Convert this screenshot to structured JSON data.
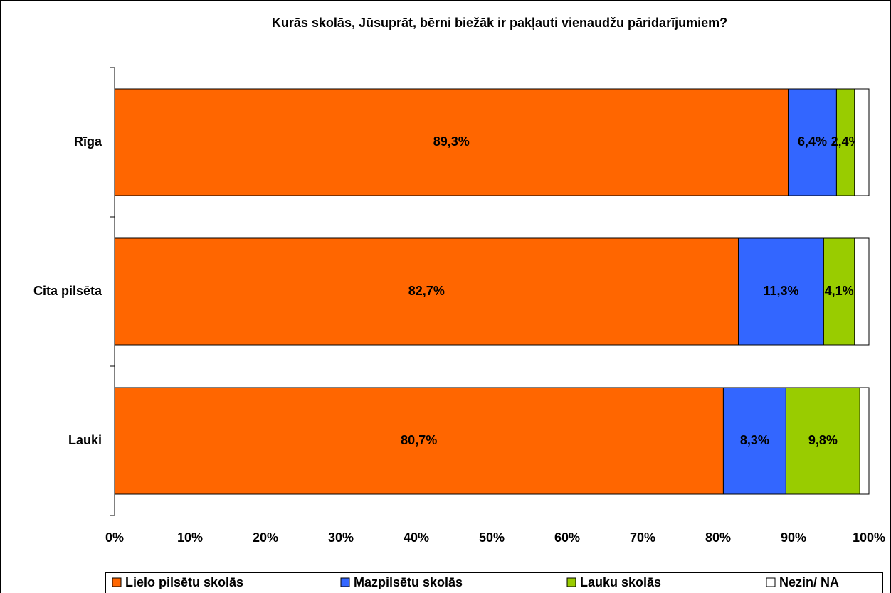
{
  "chart_data": {
    "type": "stacked-barh",
    "title": "Kurās skolās, Jūsuprāt, bērni biežāk ir pakļauti vienaudžu pāridarījumiem?",
    "categories": [
      "Rīga",
      "Cita pilsēta",
      "Lauki"
    ],
    "series": [
      {
        "name": "Lielo pilsētu skolās",
        "color": "#ff6600",
        "values": [
          89.3,
          82.7,
          80.7
        ],
        "value_labels": [
          "89,3%",
          "82,7%",
          "80,7%"
        ]
      },
      {
        "name": "Mazpilsētu skolās",
        "color": "#3366ff",
        "values": [
          6.4,
          11.3,
          8.3
        ],
        "value_labels": [
          "6,4%",
          "11,3%",
          "8,3%"
        ]
      },
      {
        "name": "Lauku skolās",
        "color": "#99cc00",
        "values": [
          2.4,
          4.1,
          9.8
        ],
        "value_labels": [
          "2,4%",
          "4,1%",
          "9,8%"
        ]
      },
      {
        "name": "Nezin/ NA",
        "color": "#ffffff",
        "values": [
          1.9,
          1.9,
          1.2
        ]
      }
    ],
    "xlim": [
      0,
      100
    ],
    "xticks": [
      {
        "value": 0,
        "label": "0%"
      },
      {
        "value": 10,
        "label": "10%"
      },
      {
        "value": 20,
        "label": "20%"
      },
      {
        "value": 30,
        "label": "30%"
      },
      {
        "value": 40,
        "label": "40%"
      },
      {
        "value": 50,
        "label": "50%"
      },
      {
        "value": 60,
        "label": "60%"
      },
      {
        "value": 70,
        "label": "70%"
      },
      {
        "value": 80,
        "label": "80%"
      },
      {
        "value": 90,
        "label": "90%"
      },
      {
        "value": 100,
        "label": "100%"
      }
    ],
    "legend": "bottom"
  }
}
